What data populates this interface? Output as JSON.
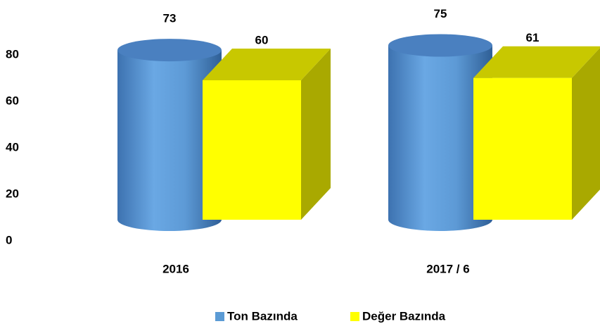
{
  "chart_data": {
    "type": "bar3d",
    "categories": [
      "2016",
      "2017 / 6"
    ],
    "series": [
      {
        "name": "Ton Bazında",
        "color": "#5b9bd5",
        "values": [
          73,
          75
        ]
      },
      {
        "name": "Değer Bazında",
        "color": "#ffff00",
        "values": [
          60,
          61
        ]
      }
    ],
    "ylim": [
      0,
      80
    ],
    "yticks": [
      0,
      20,
      40,
      60,
      80
    ],
    "grid": false,
    "legend": "bottom"
  }
}
